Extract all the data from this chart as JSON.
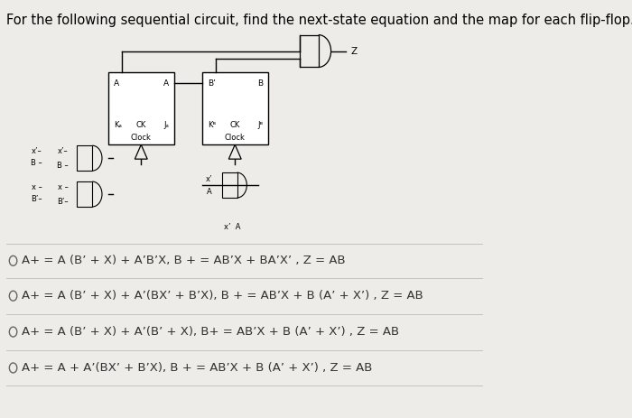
{
  "title": "For the following sequential circuit, find the next-state equation and the map for each flip-flop.",
  "bg_color": "#eeece8",
  "options": [
    "A+ = A (B’ + X) + A’B’X, B + = AB’X + BA’X’ , Z = AB",
    "A+ = A (B’ + X) + A’(BX’ + B’X), B + = AB’X + B (A’ + X’) , Z = AB",
    "A+ = A (B’ + X) + A’(B’ + X), B+ = AB’X + B (A’ + X’) , Z = AB",
    "A+ = A + A’(BX’ + B’X), B + = AB’X + B (A’ + X’) , Z = AB"
  ],
  "font_size_title": 10.5,
  "font_size_options": 9.5
}
